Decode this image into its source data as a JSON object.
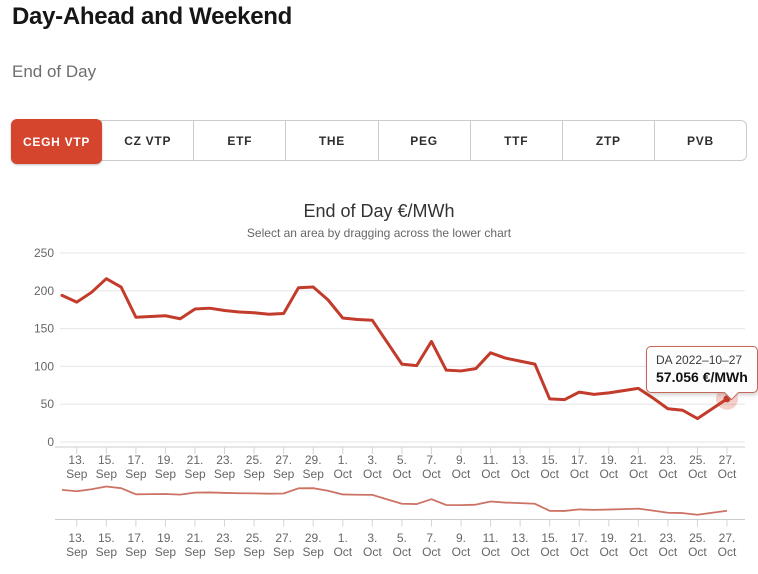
{
  "header": {
    "title": "Day-Ahead and Weekend",
    "subtitle": "End of Day"
  },
  "tabs": [
    {
      "label": "CEGH VTP",
      "active": true
    },
    {
      "label": "CZ VTP",
      "active": false
    },
    {
      "label": "ETF",
      "active": false
    },
    {
      "label": "THE",
      "active": false
    },
    {
      "label": "PEG",
      "active": false
    },
    {
      "label": "TTF",
      "active": false
    },
    {
      "label": "ZTP",
      "active": false
    },
    {
      "label": "PVB",
      "active": false
    }
  ],
  "chart": {
    "title": "End of Day €/MWh",
    "subtitle": "Select an area by dragging across the lower chart"
  },
  "tooltip": {
    "date_label": "DA 2022–10–27",
    "value_label": "57.056 €/MWh"
  },
  "colors": {
    "accent": "#d5452e",
    "line": "#c23b2b",
    "nav_line": "#cd7366",
    "grid": "#e6e6e6",
    "axis_line": "#cccccc",
    "tick": "#d4d4d4",
    "axis_text": "#666666",
    "halo": "rgba(213,69,48,0.25)"
  },
  "chart_data": {
    "type": "line",
    "title": "End of Day €/MWh",
    "subtitle": "Select an area by dragging across the lower chart",
    "ylabel": "€/MWh",
    "ylim": [
      0,
      250
    ],
    "yticks": [
      0,
      50,
      100,
      150,
      200,
      250
    ],
    "grid": "horizontal",
    "x_start_date": "2022-09-12",
    "x_end_date": "2022-10-27",
    "frequency": "daily",
    "series_name": "DA",
    "values": [
      194,
      185,
      198,
      216,
      205,
      165,
      166,
      167,
      163,
      176,
      177,
      174,
      172,
      171,
      169,
      170,
      204,
      205,
      188,
      164,
      162,
      161,
      132,
      103,
      101,
      133,
      95,
      94,
      97,
      118,
      111,
      107,
      103,
      57,
      56,
      66,
      63,
      65,
      68,
      71,
      58,
      44,
      42,
      31,
      44,
      57.056
    ],
    "xticks": [
      {
        "i": 1,
        "l1": "13.",
        "l2": "Sep"
      },
      {
        "i": 3,
        "l1": "15.",
        "l2": "Sep"
      },
      {
        "i": 5,
        "l1": "17.",
        "l2": "Sep"
      },
      {
        "i": 7,
        "l1": "19.",
        "l2": "Sep"
      },
      {
        "i": 9,
        "l1": "21.",
        "l2": "Sep"
      },
      {
        "i": 11,
        "l1": "23.",
        "l2": "Sep"
      },
      {
        "i": 13,
        "l1": "25.",
        "l2": "Sep"
      },
      {
        "i": 15,
        "l1": "27.",
        "l2": "Sep"
      },
      {
        "i": 17,
        "l1": "29.",
        "l2": "Sep"
      },
      {
        "i": 19,
        "l1": "1.",
        "l2": "Oct"
      },
      {
        "i": 21,
        "l1": "3.",
        "l2": "Oct"
      },
      {
        "i": 23,
        "l1": "5.",
        "l2": "Oct"
      },
      {
        "i": 25,
        "l1": "7.",
        "l2": "Oct"
      },
      {
        "i": 27,
        "l1": "9.",
        "l2": "Oct"
      },
      {
        "i": 29,
        "l1": "11.",
        "l2": "Oct"
      },
      {
        "i": 31,
        "l1": "13.",
        "l2": "Oct"
      },
      {
        "i": 33,
        "l1": "15.",
        "l2": "Oct"
      },
      {
        "i": 35,
        "l1": "17.",
        "l2": "Oct"
      },
      {
        "i": 37,
        "l1": "19.",
        "l2": "Oct"
      },
      {
        "i": 39,
        "l1": "21.",
        "l2": "Oct"
      },
      {
        "i": 41,
        "l1": "23.",
        "l2": "Oct"
      },
      {
        "i": 43,
        "l1": "25.",
        "l2": "Oct"
      },
      {
        "i": 45,
        "l1": "27.",
        "l2": "Oct"
      }
    ],
    "last_point": {
      "date": "2022-10-27",
      "value": 57.056
    },
    "legend": "off",
    "navigator": true
  }
}
